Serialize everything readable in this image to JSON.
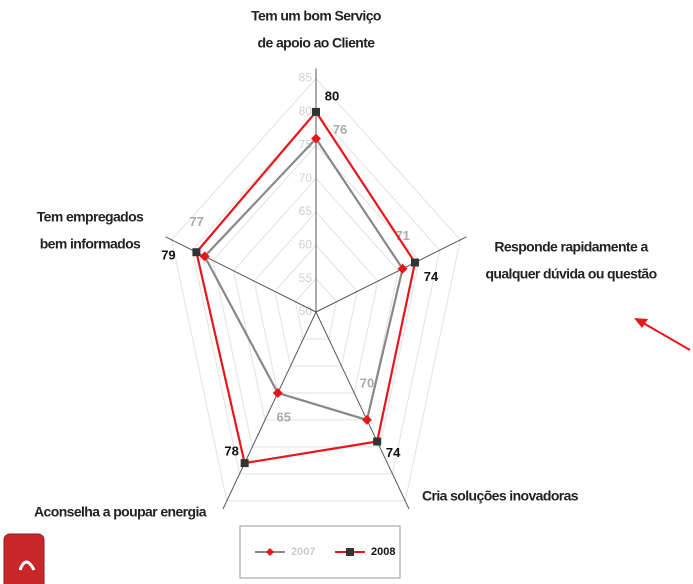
{
  "chart_data": {
    "type": "radar",
    "categories": [
      [
        "Tem um bom Serviço",
        "de apoio ao Cliente"
      ],
      [
        "Responde rapidamente a",
        "qualquer dúvida ou questão"
      ],
      [
        "Cria soluções inovadoras"
      ],
      [
        "Aconselha a poupar energia"
      ],
      [
        "Tem empregados",
        "bem informados"
      ]
    ],
    "series": [
      {
        "name": "2007",
        "color": "#888888",
        "marker_color": "#e8161b",
        "values": [
          76,
          71,
          70,
          65,
          77
        ]
      },
      {
        "name": "2008",
        "color": "#e8161b",
        "marker_color": "#333333",
        "values": [
          80,
          74,
          74,
          78,
          79
        ]
      }
    ],
    "rlim": [
      50,
      85
    ],
    "rticks": [
      50,
      55,
      60,
      65,
      70,
      75,
      80,
      85
    ],
    "grid": true,
    "legend": "bottom"
  }
}
